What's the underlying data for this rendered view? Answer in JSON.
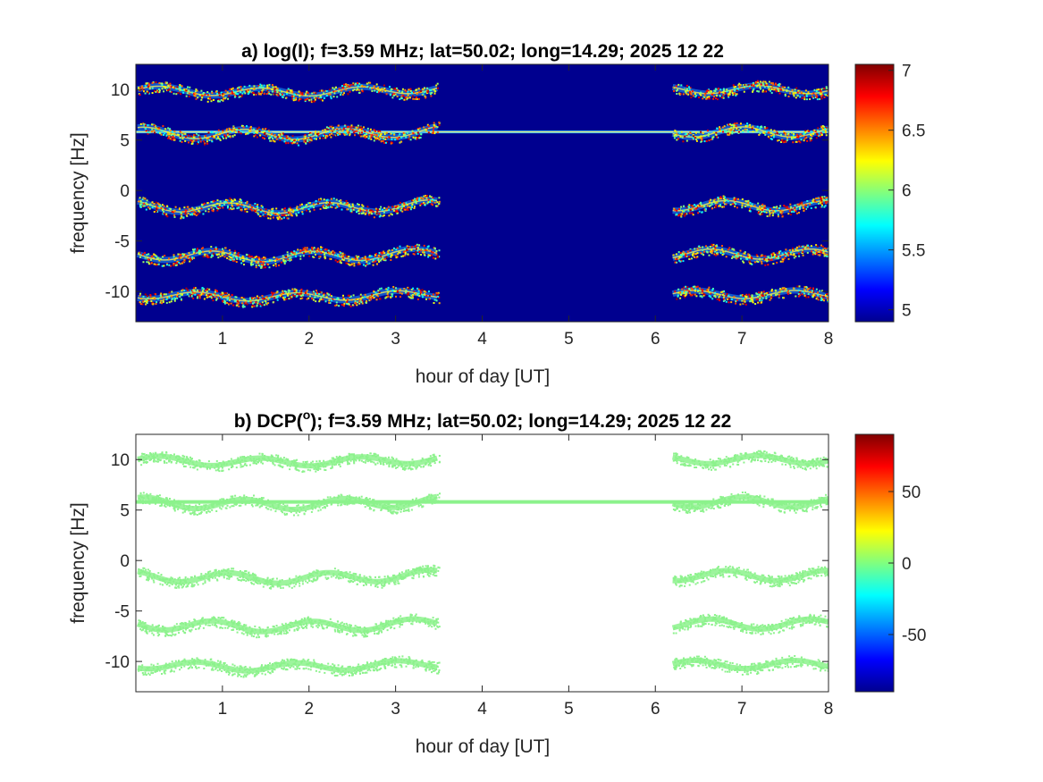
{
  "colors": {
    "plot_a_background": "#00008f",
    "plot_b_background": "#ffffff",
    "plot_b_trace": "#8cf28c",
    "axis": "#262626"
  },
  "chart_data": [
    {
      "type": "heatmap",
      "title_prefix": "a) log(I); f=3.59 MHz;  lat=50.02; long=14.29; 2025 12 22",
      "xlabel": "hour of day [UT]",
      "ylabel": "frequency [Hz]",
      "xlim": [
        0,
        8
      ],
      "ylim": [
        -13,
        12.5
      ],
      "xticks": [
        1,
        2,
        3,
        4,
        5,
        6,
        7,
        8
      ],
      "yticks": [
        10,
        5,
        0,
        -5,
        -10
      ],
      "colorbar": {
        "colormap": "jet",
        "range": [
          4.9,
          7.05
        ],
        "ticks": [
          7,
          6.5,
          6,
          5.5,
          5
        ]
      },
      "constant_line_hz": 5.8,
      "data_gap_hours": [
        3.5,
        6.2
      ],
      "traces": [
        {
          "mean_hz": 10.0,
          "amplitude_hz": 0.4
        },
        {
          "mean_hz": 5.8,
          "amplitude_hz": 0.5
        },
        {
          "mean_hz": -1.5,
          "amplitude_hz": 0.5
        },
        {
          "mean_hz": -6.3,
          "amplitude_hz": 0.5
        },
        {
          "mean_hz": -10.3,
          "amplitude_hz": 0.4
        }
      ]
    },
    {
      "type": "heatmap",
      "title_prefix": "b) DCP(",
      "title_superscript": "o",
      "title_suffix": "); f=3.59 MHz;  lat=50.02; long=14.29; 2025 12 22",
      "xlabel": "hour of day [UT]",
      "ylabel": "frequency [Hz]",
      "xlim": [
        0,
        8
      ],
      "ylim": [
        -13,
        12.5
      ],
      "xticks": [
        1,
        2,
        3,
        4,
        5,
        6,
        7,
        8
      ],
      "yticks": [
        10,
        5,
        0,
        -5,
        -10
      ],
      "colorbar": {
        "colormap": "jet",
        "range": [
          -90,
          90
        ],
        "ticks": [
          50,
          0,
          -50
        ]
      },
      "constant_line_hz": 5.8,
      "data_gap_hours": [
        3.5,
        6.2
      ],
      "traces": [
        {
          "mean_hz": 10.0,
          "amplitude_hz": 0.4
        },
        {
          "mean_hz": 5.8,
          "amplitude_hz": 0.5
        },
        {
          "mean_hz": -1.5,
          "amplitude_hz": 0.5
        },
        {
          "mean_hz": -6.3,
          "amplitude_hz": 0.5
        },
        {
          "mean_hz": -10.3,
          "amplitude_hz": 0.4
        }
      ]
    }
  ]
}
